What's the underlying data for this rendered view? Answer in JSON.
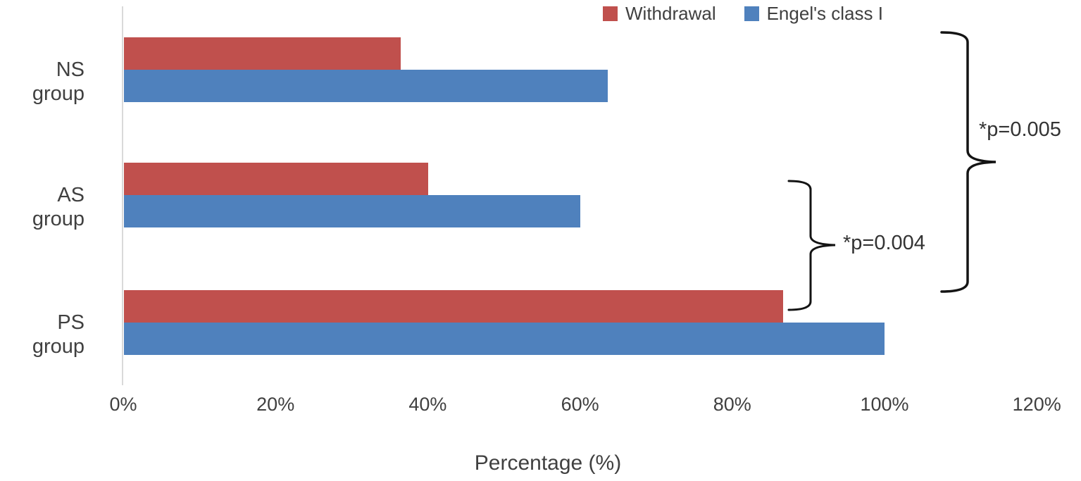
{
  "chart_data": {
    "type": "bar",
    "orientation": "horizontal",
    "title": "",
    "xlabel": "Percentage (%)",
    "ylabel": "",
    "categories": [
      "NS group",
      "AS group",
      "PS group"
    ],
    "series": [
      {
        "name": "Withdrawal",
        "color": "#C0504D",
        "values": [
          36.4,
          40.0,
          86.7
        ]
      },
      {
        "name": "Engel's class I",
        "color": "#4F81BD",
        "values": [
          63.6,
          60.0,
          100.0
        ]
      }
    ],
    "xlim": [
      0,
      120
    ],
    "x_ticks": [
      "0%",
      "20%",
      "40%",
      "60%",
      "80%",
      "100%",
      "120%"
    ],
    "grid": false,
    "legend_position": "top-right",
    "annotations": [
      {
        "label": "*p=0.005"
      },
      {
        "label": "*p=0.004"
      }
    ]
  },
  "axis": {
    "title": "Percentage (%)"
  },
  "colors": {
    "axis_line": "#d9d9d9",
    "text": "#404040",
    "brace": "#141414"
  }
}
